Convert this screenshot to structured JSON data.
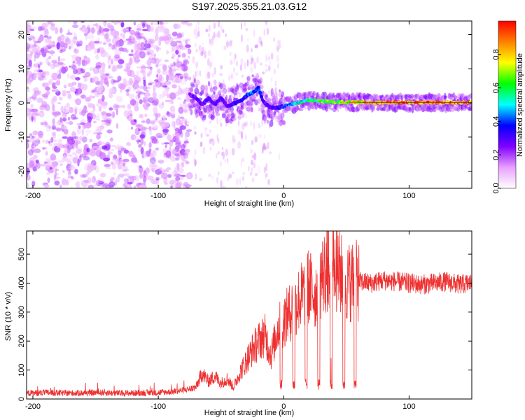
{
  "title": "S197.2025.355.21.03.G12",
  "chart_data": [
    {
      "type": "heatmap",
      "name": "spectrogram",
      "xlabel": "Height of straight line (km)",
      "ylabel": "Frequency (Hz)",
      "xlim": [
        -205,
        150
      ],
      "ylim": [
        -25,
        24
      ],
      "xticks": [
        -200,
        -100,
        0,
        100
      ],
      "yticks": [
        20,
        10,
        0,
        -10,
        -20
      ],
      "noise_region_x": [
        -200,
        -75
      ],
      "signal_track": {
        "x": [
          -75,
          -70,
          -65,
          -60,
          -55,
          -50,
          -45,
          -40,
          -35,
          -30,
          -25,
          -20,
          -17,
          -14,
          -10,
          -5,
          0,
          10,
          20,
          30,
          40,
          50,
          60,
          70,
          80,
          90,
          100,
          110,
          120,
          130,
          140,
          150
        ],
        "freq": [
          2.5,
          1.5,
          -0.5,
          1.5,
          -0.5,
          1.5,
          -1,
          0,
          0.5,
          2,
          3,
          4.5,
          1,
          -0.5,
          -1.5,
          -1.5,
          -1,
          0,
          0.8,
          0.5,
          0.3,
          0.2,
          0.2,
          0.1,
          0.1,
          0.1,
          0.1,
          0.1,
          0.1,
          0.1,
          0.1,
          0.1
        ],
        "amplitude": [
          0.25,
          0.3,
          0.3,
          0.3,
          0.3,
          0.3,
          0.3,
          0.35,
          0.35,
          0.4,
          0.45,
          0.4,
          0.35,
          0.3,
          0.3,
          0.35,
          0.4,
          0.55,
          0.6,
          0.65,
          0.7,
          0.75,
          0.85,
          0.9,
          0.95,
          0.95,
          0.95,
          0.95,
          0.95,
          0.95,
          0.95,
          0.95
        ]
      },
      "colorbar": {
        "label": "Normalized spectral amplitude",
        "ticks": [
          0.0,
          0.2,
          0.4,
          0.6,
          0.8
        ],
        "range": [
          0,
          1
        ],
        "colors": [
          "#ffffff",
          "#e8a0ff",
          "#8000ff",
          "#0000ff",
          "#00ffff",
          "#00ff00",
          "#ffff00",
          "#ff8000",
          "#ff0000"
        ]
      }
    },
    {
      "type": "line",
      "name": "snr",
      "xlabel": "Height of straight line (km)",
      "ylabel": "SNR (10 * v/v)",
      "xlim": [
        -205,
        150
      ],
      "ylim": [
        0,
        580
      ],
      "xticks": [
        -200,
        -100,
        0,
        100
      ],
      "yticks": [
        0,
        100,
        200,
        300,
        400,
        500
      ],
      "color": "#ee3030",
      "series": [
        {
          "name": "SNR",
          "x": [
            -205,
            -190,
            -175,
            -160,
            -145,
            -130,
            -115,
            -100,
            -90,
            -80,
            -70,
            -65,
            -60,
            -55,
            -50,
            -45,
            -40,
            -35,
            -30,
            -25,
            -20,
            -15,
            -10,
            -5,
            0,
            5,
            10,
            15,
            20,
            25,
            30,
            35,
            40,
            45,
            50,
            55,
            60,
            70,
            80,
            90,
            100,
            110,
            120,
            130,
            140,
            150
          ],
          "values": [
            20,
            22,
            20,
            21,
            22,
            20,
            21,
            22,
            25,
            30,
            40,
            90,
            60,
            80,
            55,
            70,
            40,
            90,
            130,
            170,
            200,
            220,
            150,
            240,
            270,
            300,
            330,
            360,
            390,
            360,
            420,
            450,
            470,
            430,
            400,
            410,
            405,
            400,
            410,
            405,
            400,
            395,
            400,
            405,
            395,
            400
          ]
        }
      ]
    }
  ]
}
